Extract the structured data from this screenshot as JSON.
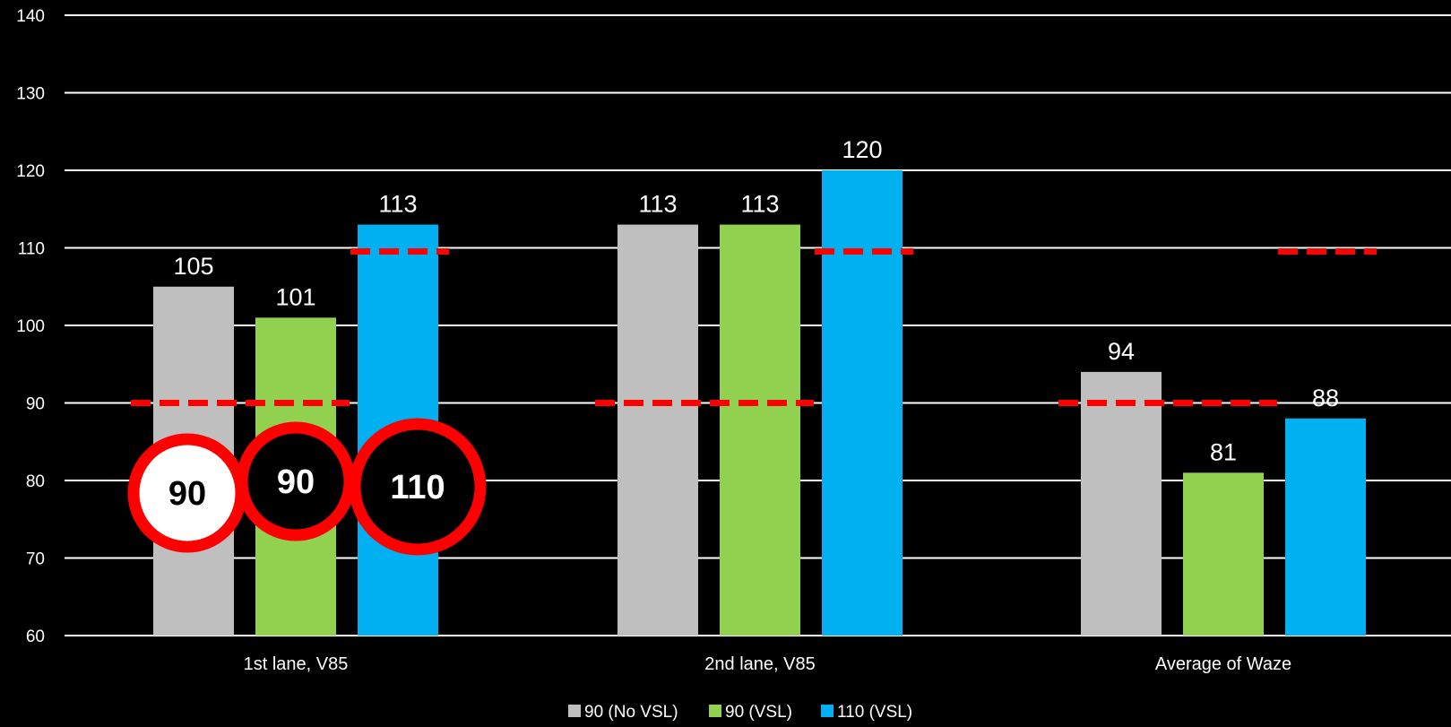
{
  "chart_data": {
    "type": "bar",
    "categories": [
      "1st lane, V85",
      "2nd lane, V85",
      "Average of Waze"
    ],
    "series": [
      {
        "name": "90 (No VSL)",
        "color": "#bfbfbf",
        "values": [
          105,
          113,
          94
        ]
      },
      {
        "name": "90 (VSL)",
        "color": "#92d050",
        "values": [
          101,
          113,
          81
        ]
      },
      {
        "name": "110 (VSL)",
        "color": "#00b0f0",
        "values": [
          113,
          120,
          88
        ]
      }
    ],
    "data_labels": [
      [
        "105",
        "113",
        "94"
      ],
      [
        "101",
        "113",
        "81"
      ],
      [
        "113",
        "120",
        "88"
      ]
    ],
    "ylim": [
      60,
      140
    ],
    "yticks": [
      60,
      70,
      80,
      90,
      100,
      110,
      120,
      130,
      140
    ],
    "grid": true,
    "legend_position": "bottom",
    "speed_limit_lines": [
      {
        "category_index": 0,
        "value": 90,
        "span": "series-0-to-1"
      },
      {
        "category_index": 0,
        "value": 110,
        "span": "series-2"
      },
      {
        "category_index": 1,
        "value": 90,
        "span": "series-0-to-1"
      },
      {
        "category_index": 1,
        "value": 110,
        "span": "series-2"
      },
      {
        "category_index": 2,
        "value": 90,
        "span": "series-0-to-1"
      },
      {
        "category_index": 2,
        "value": 110,
        "span": "series-2"
      }
    ],
    "speed_limit_line_color": "#ff0000"
  },
  "signs": [
    {
      "text": "90",
      "style": "white-fill",
      "icon": "speed-limit-sign-icon"
    },
    {
      "text": "90",
      "style": "black-fill",
      "icon": "variable-speed-limit-sign-icon"
    },
    {
      "text": "110",
      "style": "black-fill",
      "icon": "variable-speed-limit-sign-icon"
    }
  ],
  "colors": {
    "background": "#000000",
    "grid": "#ffffff",
    "text": "#ffffff",
    "sign_ring": "#ff0000"
  }
}
